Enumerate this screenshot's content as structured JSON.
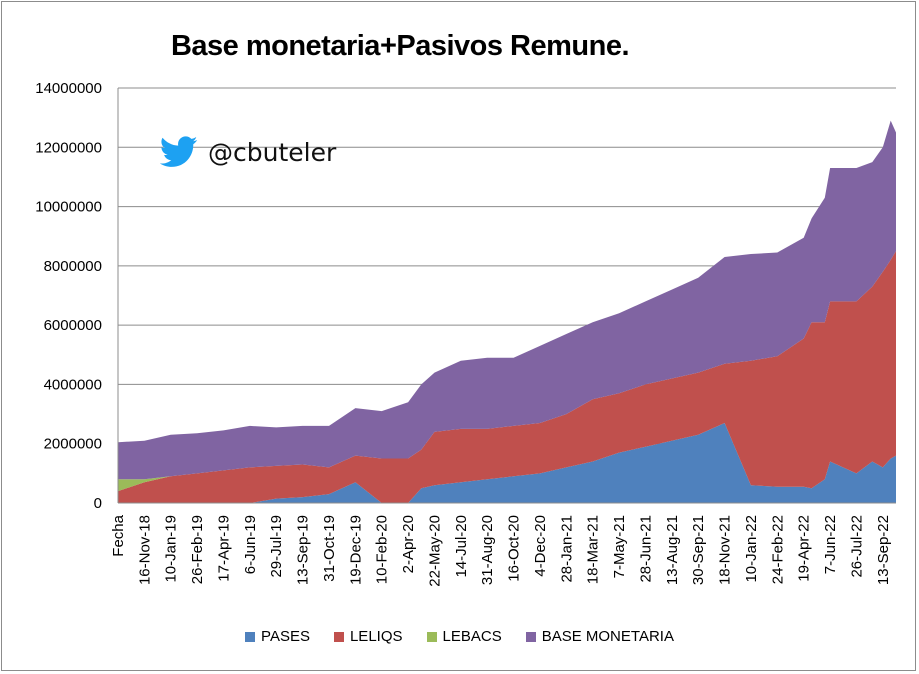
{
  "chart_data": {
    "type": "area",
    "stacked": true,
    "title": "Base monetaria+Pasivos Remune.",
    "watermark_handle": "@cbuteler",
    "watermark_icon": "twitter-bird-icon",
    "ylim": [
      0,
      14000000
    ],
    "yticks": [
      "0",
      "2000000",
      "4000000",
      "6000000",
      "8000000",
      "10000000",
      "12000000",
      "14000000"
    ],
    "x_tick_labels": [
      "Fecha",
      "16-Nov-18",
      "10-Jan-19",
      "26-Feb-19",
      "17-Apr-19",
      "6-Jun-19",
      "29-Jul-19",
      "13-Sep-19",
      "31-Oct-19",
      "19-Dec-19",
      "10-Feb-20",
      "2-Apr-20",
      "22-May-20",
      "14-Jul-20",
      "31-Aug-20",
      "16-Oct-20",
      "4-Dec-20",
      "28-Jan-21",
      "18-Mar-21",
      "7-May-21",
      "28-Jun-21",
      "13-Aug-21",
      "30-Sep-21",
      "18-Nov-21",
      "10-Jan-22",
      "24-Feb-22",
      "19-Apr-22",
      "7-Jun-22",
      "26-Jul-22",
      "13-Sep-22"
    ],
    "x_index": [
      0,
      1,
      2,
      3,
      4,
      5,
      6,
      7,
      8,
      9,
      10,
      11,
      11.5,
      12,
      13,
      14,
      15,
      16,
      17,
      18,
      19,
      20,
      21,
      22,
      23,
      24,
      25,
      26,
      26.3,
      26.8,
      27,
      28,
      28.6,
      29,
      29.3,
      29.5
    ],
    "series": [
      {
        "name": "PASES",
        "color": "#4f81bd",
        "values": [
          0,
          0,
          0,
          0,
          0,
          0,
          150000,
          200000,
          300000,
          700000,
          0,
          0,
          500000,
          600000,
          700000,
          800000,
          900000,
          1000000,
          1200000,
          1400000,
          1700000,
          1900000,
          2100000,
          2300000,
          2700000,
          600000,
          550000,
          550000,
          500000,
          800000,
          1400000,
          1000000,
          1400000,
          1200000,
          1500000,
          1600000
        ]
      },
      {
        "name": "LELIQS",
        "color": "#c0504d",
        "values": [
          400000,
          700000,
          900000,
          1000000,
          1100000,
          1200000,
          1100000,
          1100000,
          900000,
          900000,
          1500000,
          1500000,
          1300000,
          1800000,
          1800000,
          1700000,
          1700000,
          1700000,
          1800000,
          2100000,
          2000000,
          2100000,
          2100000,
          2100000,
          2000000,
          4200000,
          4400000,
          5000000,
          5600000,
          5300000,
          5400000,
          5800000,
          5900000,
          6600000,
          6700000,
          6900000
        ]
      },
      {
        "name": "LEBACS",
        "color": "#9bbb59",
        "values": [
          400000,
          100000,
          0,
          0,
          0,
          0,
          0,
          0,
          0,
          0,
          0,
          0,
          0,
          0,
          0,
          0,
          0,
          0,
          0,
          0,
          0,
          0,
          0,
          0,
          0,
          0,
          0,
          0,
          0,
          0,
          0,
          0,
          0,
          0,
          0,
          0
        ]
      },
      {
        "name": "BASE MONETARIA",
        "color": "#8064a2",
        "values": [
          1250000,
          1300000,
          1400000,
          1350000,
          1350000,
          1400000,
          1300000,
          1300000,
          1400000,
          1600000,
          1600000,
          1900000,
          2200000,
          2000000,
          2300000,
          2400000,
          2300000,
          2600000,
          2700000,
          2600000,
          2700000,
          2800000,
          3000000,
          3200000,
          3600000,
          3600000,
          3500000,
          3400000,
          3500000,
          4200000,
          4500000,
          4500000,
          4200000,
          4200000,
          4700000,
          4000000
        ]
      }
    ]
  }
}
